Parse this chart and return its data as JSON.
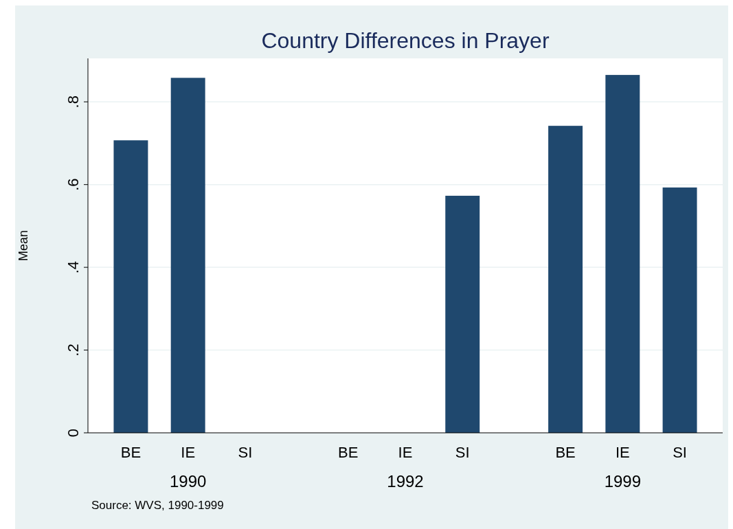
{
  "chart_data": {
    "type": "bar",
    "title": "Country Differences in Prayer",
    "ylabel": "Mean",
    "categories": [
      "BE",
      "IE",
      "SI",
      "BE",
      "IE",
      "SI",
      "BE",
      "IE",
      "SI"
    ],
    "values": [
      0.707,
      0.858,
      null,
      null,
      null,
      0.573,
      0.742,
      0.865,
      0.593
    ],
    "color": "#1f486e",
    "ylim": [
      0,
      0.905
    ],
    "yticks": [
      0,
      {
        "value": 0.2,
        "label": ".2"
      },
      {
        "value": 0.4,
        "label": ".4"
      },
      {
        "value": 0.6,
        "label": ".6"
      },
      {
        "value": 0.8,
        "label": ".8"
      }
    ],
    "grid": "y",
    "annotations": [
      "1990",
      "1992",
      "1999",
      "Source: WVS, 1990-1999"
    ]
  }
}
